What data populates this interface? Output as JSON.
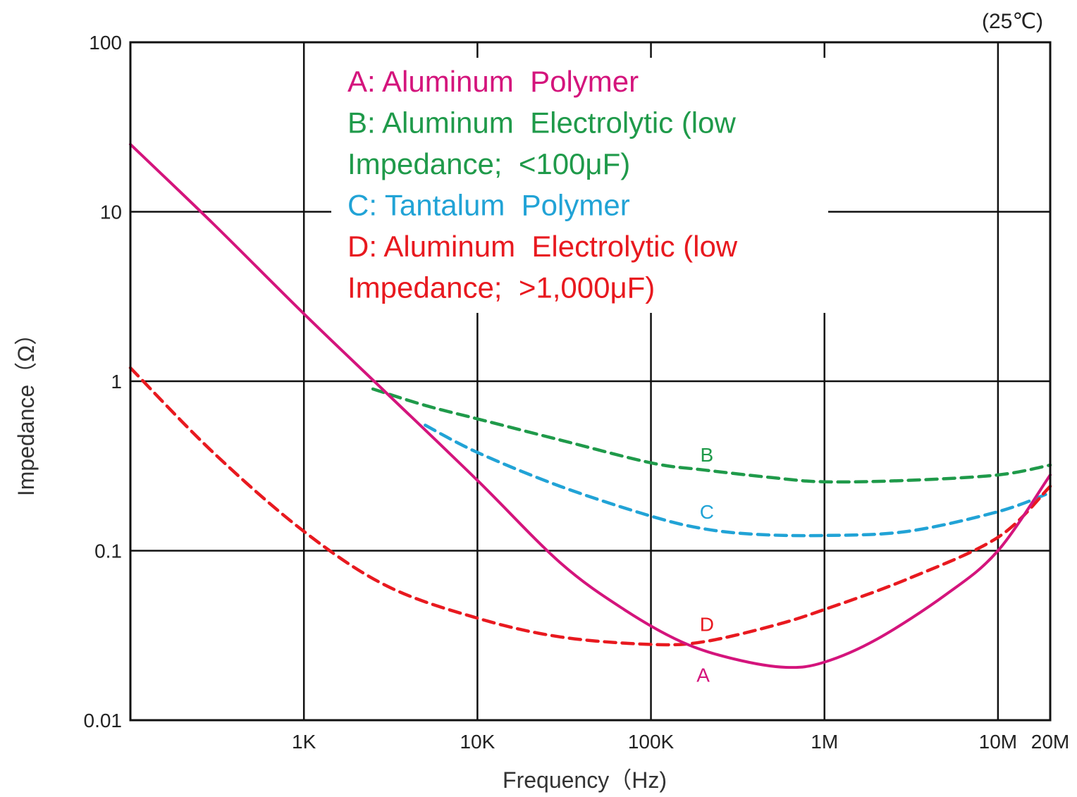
{
  "chart_data": {
    "type": "line",
    "note": "(25℃)",
    "xlabel": "Frequency（Hz)",
    "ylabel": "Impedance（Ω）",
    "x_scale": "log",
    "y_scale": "log",
    "xlim": [
      100,
      20000000
    ],
    "ylim": [
      0.01,
      100
    ],
    "grid": true,
    "x_ticks": [
      {
        "value": 1000,
        "label": "1K"
      },
      {
        "value": 10000,
        "label": "10K"
      },
      {
        "value": 100000,
        "label": "100K"
      },
      {
        "value": 1000000,
        "label": "1M"
      },
      {
        "value": 10000000,
        "label": "10M"
      },
      {
        "value": 20000000,
        "label": "20M"
      }
    ],
    "y_ticks": [
      {
        "value": 0.01,
        "label": "0.01"
      },
      {
        "value": 0.1,
        "label": "0.1"
      },
      {
        "value": 1,
        "label": "1"
      },
      {
        "value": 10,
        "label": "10"
      },
      {
        "value": 100,
        "label": "100"
      }
    ],
    "legend": [
      {
        "lines": [
          "A: Aluminum  Polymer"
        ],
        "color": "#d4147c"
      },
      {
        "lines": [
          "B: Aluminum  Electrolytic (low",
          "Impedance;  <100μF)"
        ],
        "color": "#1f9a4a"
      },
      {
        "lines": [
          "C: Tantalum  Polymer"
        ],
        "color": "#21a3d6"
      },
      {
        "lines": [
          "D: Aluminum  Electrolytic (low",
          "Impedance;  >1,000μF)"
        ],
        "color": "#e8191f"
      }
    ],
    "series": [
      {
        "name": "A",
        "color": "#d4147c",
        "style": "solid",
        "label_at": {
          "x": 200000,
          "y": 0.0185
        },
        "x": [
          100,
          300,
          1000,
          3000,
          10000,
          30000,
          70000,
          150000,
          300000,
          600000,
          1000000,
          2000000,
          5000000,
          10000000,
          20000000
        ],
        "y": [
          25,
          8.5,
          2.5,
          0.85,
          0.26,
          0.085,
          0.045,
          0.029,
          0.023,
          0.0205,
          0.022,
          0.03,
          0.055,
          0.1,
          0.28
        ]
      },
      {
        "name": "B",
        "color": "#1f9a4a",
        "style": "dashed",
        "label_at": {
          "x": 210000,
          "y": 0.37
        },
        "x": [
          2500,
          5000,
          10000,
          30000,
          100000,
          200000,
          500000,
          1000000,
          3000000,
          10000000,
          20000000
        ],
        "y": [
          0.9,
          0.72,
          0.6,
          0.45,
          0.33,
          0.3,
          0.27,
          0.255,
          0.26,
          0.28,
          0.32
        ]
      },
      {
        "name": "C",
        "color": "#21a3d6",
        "style": "dashed",
        "label_at": {
          "x": 210000,
          "y": 0.17
        },
        "x": [
          5000,
          10000,
          30000,
          100000,
          200000,
          400000,
          1000000,
          3000000,
          10000000,
          20000000
        ],
        "y": [
          0.55,
          0.38,
          0.24,
          0.16,
          0.135,
          0.125,
          0.123,
          0.13,
          0.17,
          0.22
        ]
      },
      {
        "name": "D",
        "color": "#e8191f",
        "style": "dashed",
        "label_at": {
          "x": 210000,
          "y": 0.037
        },
        "x": [
          100,
          300,
          1000,
          3000,
          10000,
          30000,
          100000,
          200000,
          500000,
          1000000,
          3000000,
          10000000,
          20000000
        ],
        "y": [
          1.2,
          0.38,
          0.13,
          0.062,
          0.04,
          0.031,
          0.028,
          0.029,
          0.036,
          0.045,
          0.068,
          0.12,
          0.24
        ]
      }
    ]
  }
}
